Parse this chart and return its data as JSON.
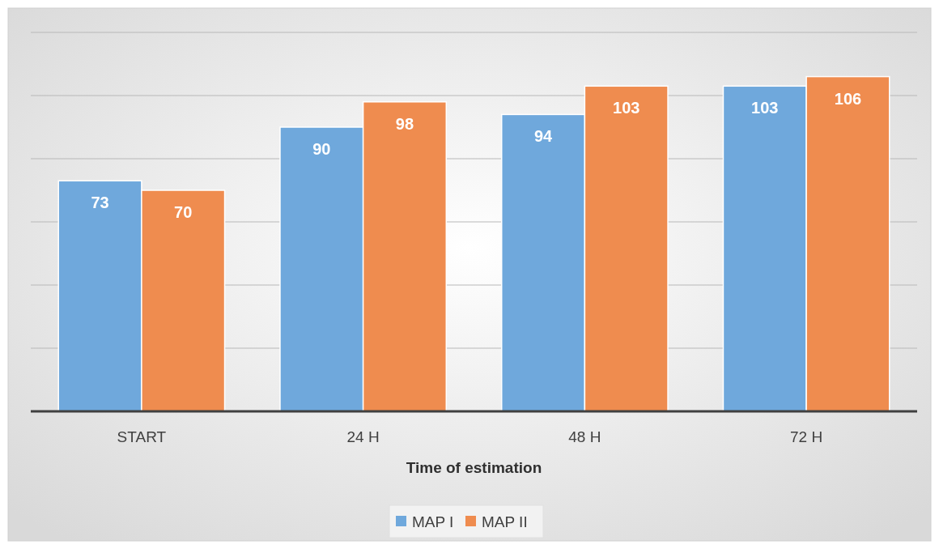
{
  "chart_data": {
    "type": "bar",
    "xlabel": "Time of estimation",
    "categories": [
      "START",
      "24 H",
      "48 H",
      "72 H"
    ],
    "series": [
      {
        "name": "MAP I",
        "color": "#6fa8dc",
        "values": [
          73,
          90,
          94,
          103
        ]
      },
      {
        "name": "MAP II",
        "color": "#ef8c4f",
        "values": [
          70,
          98,
          103,
          106
        ]
      }
    ],
    "ylim": [
      0,
      120
    ],
    "yticks": [
      {
        "value": 0,
        "label": null
      },
      {
        "value": 20,
        "label": null
      },
      {
        "value": 40,
        "label": null
      },
      {
        "value": 60,
        "label": null
      },
      {
        "value": 80,
        "label": null
      },
      {
        "value": 100,
        "label": null
      },
      {
        "value": 120,
        "label": null
      }
    ],
    "tick_labels": "x",
    "grid": "y",
    "legend": "bottom",
    "data_labels": true
  }
}
